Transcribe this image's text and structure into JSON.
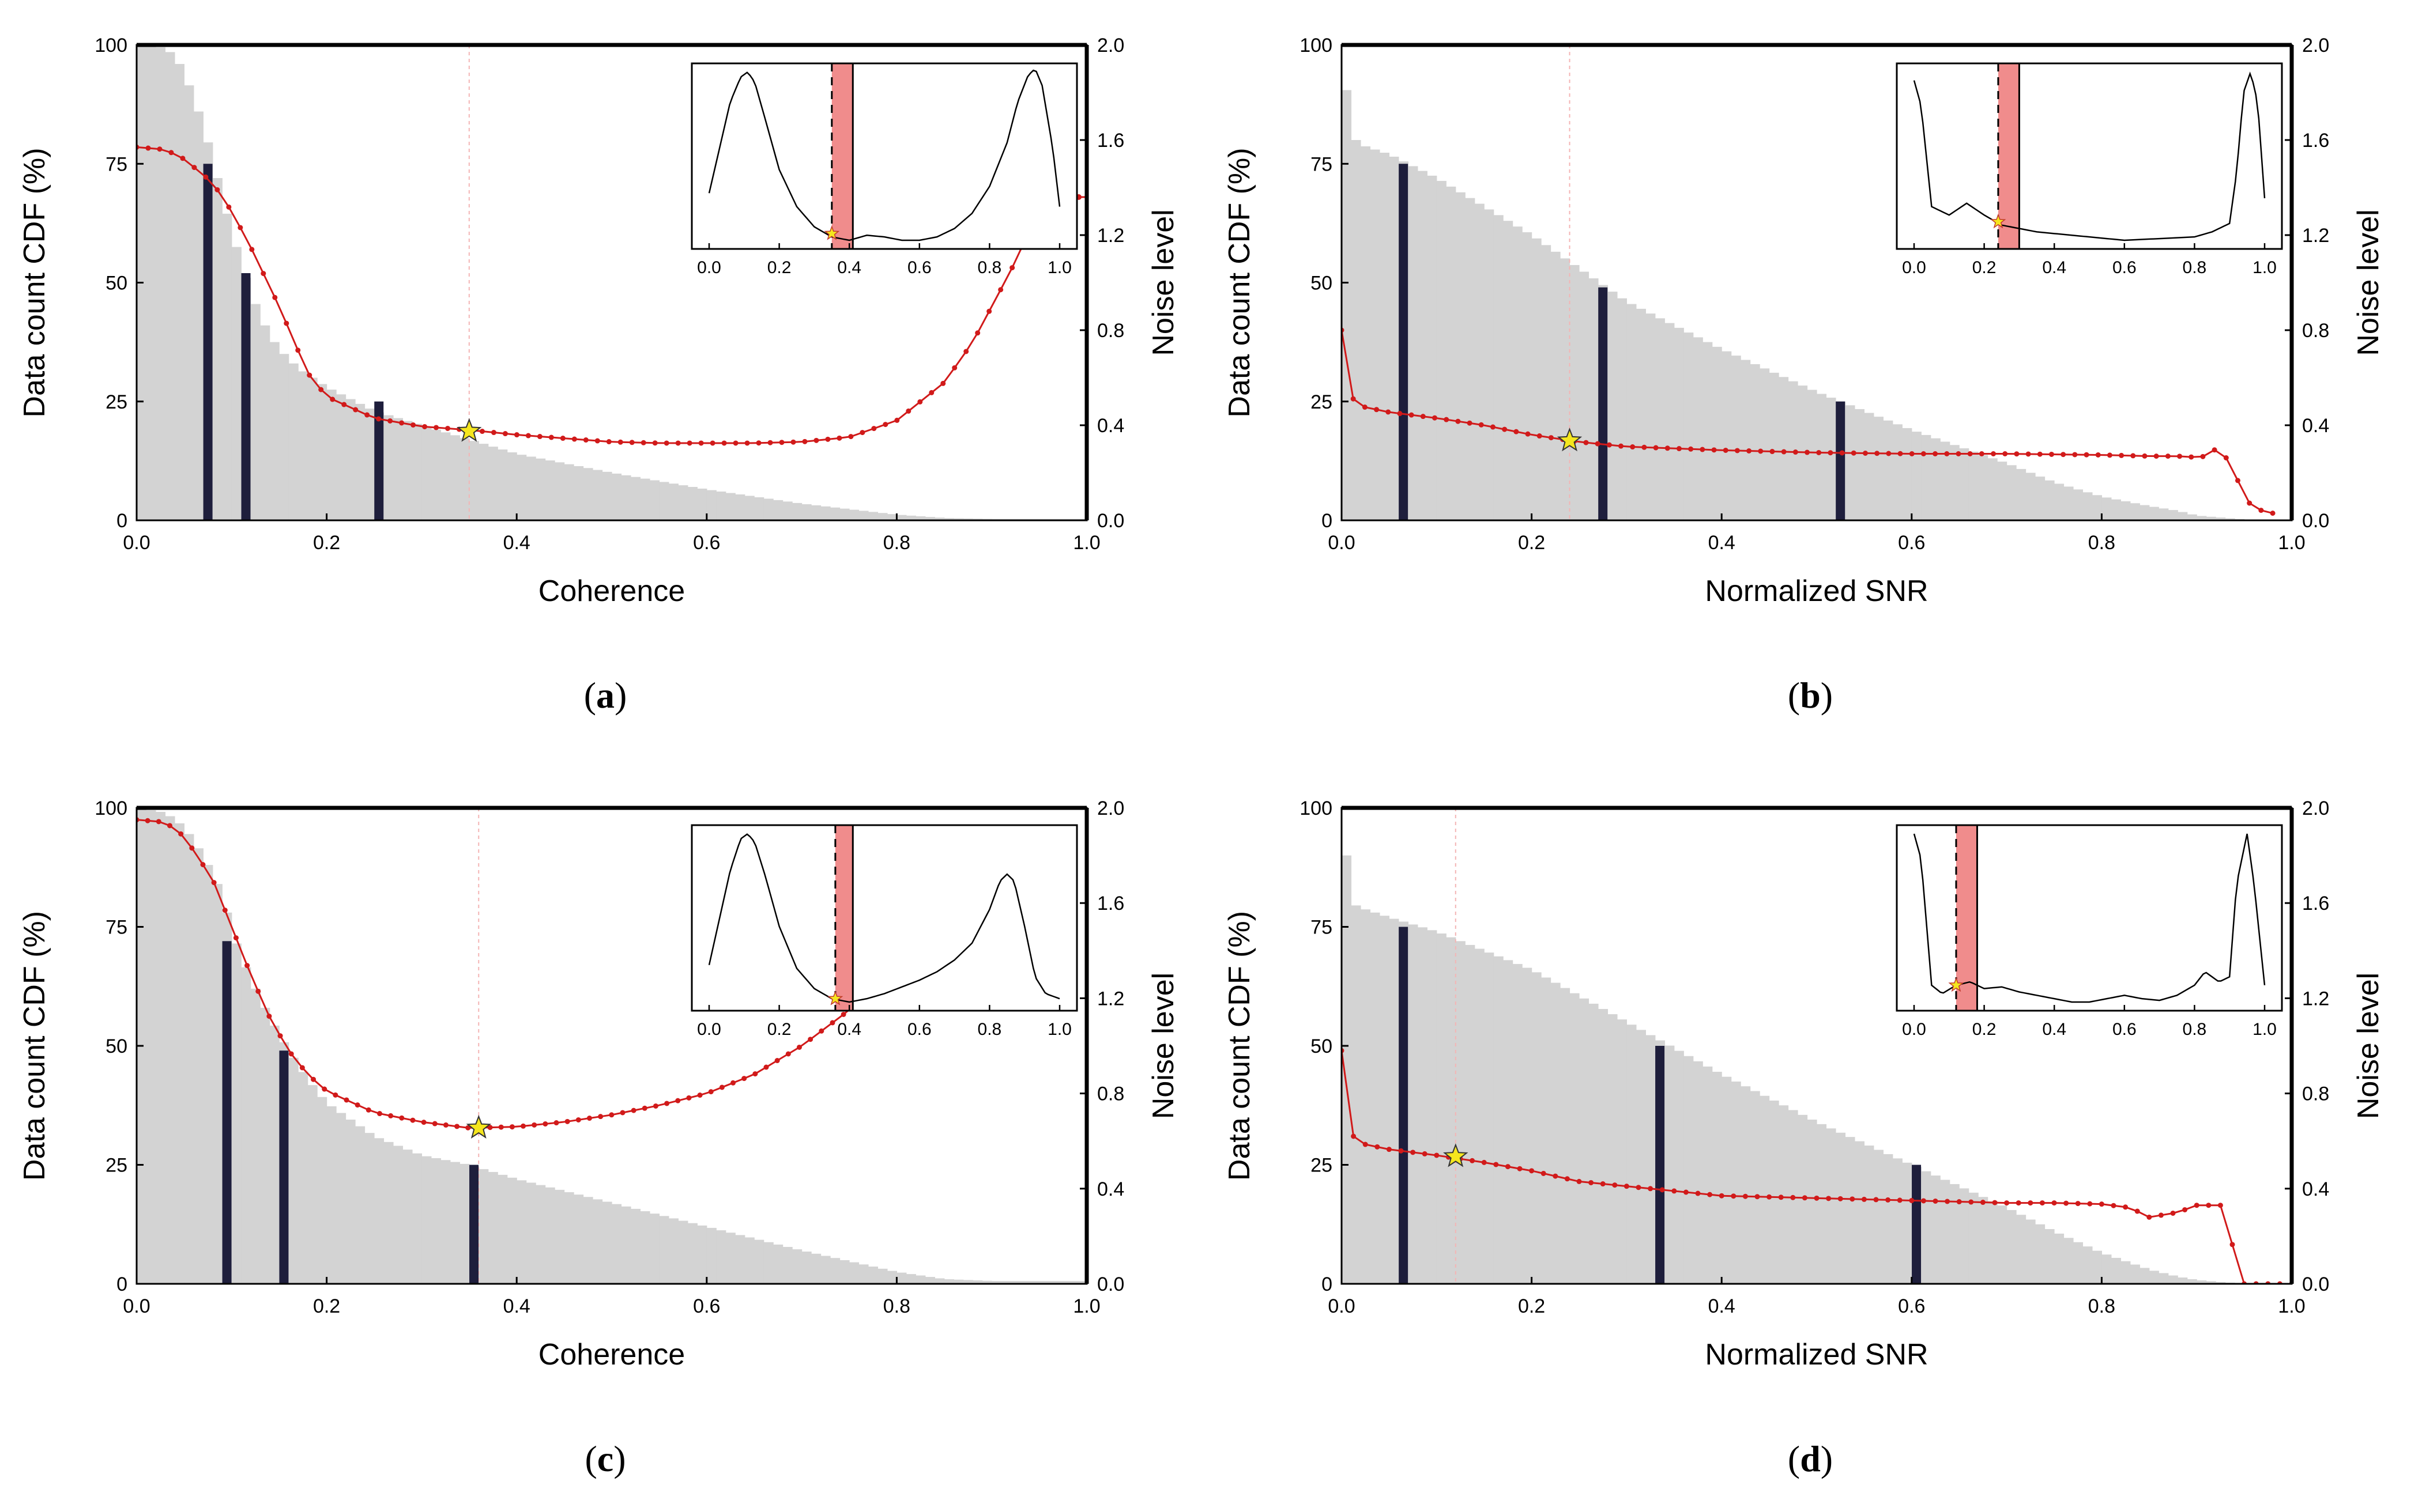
{
  "chart_data": [
    {
      "type": "bar",
      "panel_label": "a",
      "xlabel": "Coherence",
      "ylabel": "Data count CDF (%)",
      "y2label": "Noise level",
      "xlim": [
        0,
        1
      ],
      "ylim": [
        0,
        100
      ],
      "y2lim": [
        0,
        2
      ],
      "x_ticks": [
        "0.0",
        "0.2",
        "0.4",
        "0.6",
        "0.8",
        "1.0"
      ],
      "y_ticks": [
        "0",
        "25",
        "50",
        "75",
        "100"
      ],
      "y2_ticks": [
        "0.0",
        "0.4",
        "0.8",
        "1.2",
        "1.6",
        "2.0"
      ],
      "grid": false,
      "cdf": {
        "x": [
          0,
          0.02,
          0.04,
          0.05,
          0.06,
          0.07,
          0.08,
          0.09,
          0.1,
          0.11,
          0.12,
          0.13,
          0.14,
          0.15,
          0.17,
          0.2,
          0.25,
          0.3,
          0.35,
          0.4,
          0.5,
          0.6,
          0.7,
          0.8,
          0.85,
          0.9,
          1.0
        ],
        "y": [
          100,
          100,
          98,
          94,
          89,
          83,
          76,
          68,
          61,
          54,
          48,
          43,
          39,
          36,
          32,
          28,
          23,
          20,
          17,
          14,
          10,
          6.5,
          3.5,
          1.2,
          0.5,
          0.3,
          0.3
        ]
      },
      "quantile_bars": [
        {
          "x": 0.075,
          "value": 75
        },
        {
          "x": 0.115,
          "value": 52
        },
        {
          "x": 0.255,
          "value": 25
        }
      ],
      "noise_curve": {
        "x": [
          0,
          0.03,
          0.05,
          0.08,
          0.1,
          0.12,
          0.15,
          0.18,
          0.2,
          0.25,
          0.3,
          0.35,
          0.4,
          0.45,
          0.5,
          0.55,
          0.6,
          0.65,
          0.7,
          0.75,
          0.8,
          0.85,
          0.88,
          0.9,
          0.92,
          0.94,
          0.96,
          0.97
        ],
        "y": [
          1.57,
          1.56,
          1.52,
          1.42,
          1.3,
          1.15,
          0.9,
          0.62,
          0.52,
          0.43,
          0.395,
          0.38,
          0.36,
          0.345,
          0.33,
          0.325,
          0.325,
          0.325,
          0.33,
          0.35,
          0.42,
          0.58,
          0.75,
          0.9,
          1.05,
          1.22,
          1.38,
          1.48
        ]
      },
      "noise_right_marker": {
        "x": 1.0,
        "y": 1.36
      },
      "optimum": {
        "x": 0.35,
        "y": 0.375
      },
      "inset": {
        "xlim": [
          0,
          1
        ],
        "x_ticks": [
          "0.0",
          "0.2",
          "0.4",
          "0.6",
          "0.8",
          "1.0"
        ],
        "curve": {
          "x": [
            0,
            0.03,
            0.06,
            0.09,
            0.11,
            0.13,
            0.16,
            0.2,
            0.25,
            0.3,
            0.35,
            0.4,
            0.45,
            0.5,
            0.55,
            0.6,
            0.65,
            0.7,
            0.75,
            0.8,
            0.85,
            0.88,
            0.91,
            0.93,
            0.95,
            0.98,
            1.0
          ],
          "y": [
            0.28,
            0.55,
            0.82,
            0.97,
            1.0,
            0.94,
            0.72,
            0.42,
            0.2,
            0.08,
            0.02,
            0.0,
            0.03,
            0.02,
            0.0,
            0.0,
            0.02,
            0.07,
            0.16,
            0.32,
            0.58,
            0.82,
            0.98,
            1.02,
            0.92,
            0.55,
            0.2
          ]
        },
        "dashed_x": 0.35,
        "band": [
          0.35,
          0.41
        ],
        "band_line_x": 0.41,
        "star": {
          "x": 0.35,
          "y": 0.04
        }
      }
    },
    {
      "type": "bar",
      "panel_label": "b",
      "xlabel": "Normalized SNR",
      "ylabel": "Data count CDF (%)",
      "y2label": "Noise level",
      "xlim": [
        0,
        1
      ],
      "ylim": [
        0,
        100
      ],
      "y2lim": [
        0,
        2
      ],
      "x_ticks": [
        "0.0",
        "0.2",
        "0.4",
        "0.6",
        "0.8",
        "1.0"
      ],
      "y_ticks": [
        "0",
        "25",
        "50",
        "75",
        "100"
      ],
      "y2_ticks": [
        "0.0",
        "0.4",
        "0.8",
        "1.2",
        "1.6",
        "2.0"
      ],
      "grid": false,
      "cdf": {
        "x": [
          0,
          0.01,
          0.02,
          0.05,
          0.1,
          0.2,
          0.3,
          0.4,
          0.5,
          0.6,
          0.7,
          0.75,
          0.8,
          0.85,
          0.88,
          0.9,
          0.93,
          0.95,
          1.0
        ],
        "y": [
          100,
          81,
          79,
          77,
          72,
          60,
          46,
          36,
          27,
          19,
          12,
          8,
          5,
          3,
          2,
          1,
          0.5,
          0.2,
          0
        ]
      },
      "quantile_bars": [
        {
          "x": 0.065,
          "value": 75
        },
        {
          "x": 0.275,
          "value": 49
        },
        {
          "x": 0.525,
          "value": 25
        }
      ],
      "noise_curve": {
        "x": [
          0,
          0.005,
          0.01,
          0.02,
          0.05,
          0.1,
          0.15,
          0.2,
          0.25,
          0.3,
          0.4,
          0.5,
          0.6,
          0.7,
          0.8,
          0.85,
          0.88,
          0.9,
          0.91,
          0.92,
          0.93,
          0.94,
          0.95,
          0.96,
          0.98
        ],
        "y": [
          0.8,
          0.6,
          0.52,
          0.48,
          0.455,
          0.43,
          0.4,
          0.36,
          0.33,
          0.31,
          0.295,
          0.285,
          0.28,
          0.28,
          0.275,
          0.27,
          0.27,
          0.265,
          0.27,
          0.3,
          0.27,
          0.2,
          0.1,
          0.05,
          0.03
        ]
      },
      "optimum": {
        "x": 0.24,
        "y": 0.335
      },
      "inset": {
        "xlim": [
          0,
          1
        ],
        "x_ticks": [
          "0.0",
          "0.2",
          "0.4",
          "0.6",
          "0.8",
          "1.0"
        ],
        "curve": {
          "x": [
            0,
            0.02,
            0.05,
            0.1,
            0.15,
            0.2,
            0.25,
            0.3,
            0.35,
            0.4,
            0.5,
            0.6,
            0.7,
            0.8,
            0.85,
            0.9,
            0.92,
            0.94,
            0.96,
            0.98,
            1.0
          ],
          "y": [
            0.95,
            0.8,
            0.2,
            0.15,
            0.22,
            0.15,
            0.09,
            0.07,
            0.05,
            0.04,
            0.02,
            0.0,
            0.01,
            0.02,
            0.05,
            0.1,
            0.4,
            0.88,
            1.0,
            0.82,
            0.25
          ]
        },
        "dashed_x": 0.24,
        "band": [
          0.24,
          0.3
        ],
        "band_line_x": 0.3,
        "star": {
          "x": 0.24,
          "y": 0.11
        }
      }
    },
    {
      "type": "bar",
      "panel_label": "c",
      "xlabel": "Coherence",
      "ylabel": "Data count CDF (%)",
      "y2label": "Noise level",
      "xlim": [
        0,
        1
      ],
      "ylim": [
        0,
        100
      ],
      "y2lim": [
        0,
        2
      ],
      "x_ticks": [
        "0.0",
        "0.2",
        "0.4",
        "0.6",
        "0.8",
        "1.0"
      ],
      "y_ticks": [
        "0",
        "25",
        "50",
        "75",
        "100"
      ],
      "y2_ticks": [
        "0.0",
        "0.4",
        "0.8",
        "1.2",
        "1.6",
        "2.0"
      ],
      "grid": false,
      "cdf": {
        "x": [
          0,
          0.03,
          0.05,
          0.07,
          0.09,
          0.1,
          0.12,
          0.14,
          0.16,
          0.18,
          0.2,
          0.25,
          0.3,
          0.35,
          0.4,
          0.5,
          0.6,
          0.7,
          0.8,
          0.85,
          0.9,
          1.0
        ],
        "y": [
          100,
          99,
          96,
          90,
          82,
          74,
          64,
          56,
          49,
          43,
          38,
          31,
          27,
          25,
          22,
          17,
          12,
          7,
          2.5,
          1,
          0.6,
          0.6
        ]
      },
      "quantile_bars": [
        {
          "x": 0.095,
          "value": 72
        },
        {
          "x": 0.155,
          "value": 49
        },
        {
          "x": 0.355,
          "value": 25
        }
      ],
      "noise_curve": {
        "x": [
          0,
          0.03,
          0.05,
          0.08,
          0.1,
          0.12,
          0.14,
          0.16,
          0.18,
          0.2,
          0.25,
          0.3,
          0.35,
          0.4,
          0.45,
          0.5,
          0.55,
          0.6,
          0.65,
          0.7,
          0.75,
          0.78,
          0.8,
          0.85,
          0.9,
          0.93
        ],
        "y": [
          1.95,
          1.94,
          1.88,
          1.7,
          1.5,
          1.3,
          1.12,
          0.98,
          0.88,
          0.81,
          0.72,
          0.68,
          0.655,
          0.66,
          0.68,
          0.71,
          0.75,
          0.8,
          0.88,
          1.0,
          1.15,
          1.26,
          1.35,
          1.55,
          1.75,
          1.9
        ]
      },
      "optimum": {
        "x": 0.36,
        "y": 0.655
      },
      "inset": {
        "xlim": [
          0,
          1
        ],
        "x_ticks": [
          "0.0",
          "0.2",
          "0.4",
          "0.6",
          "0.8",
          "1.0"
        ],
        "curve": {
          "x": [
            0,
            0.03,
            0.06,
            0.09,
            0.11,
            0.13,
            0.16,
            0.2,
            0.25,
            0.3,
            0.35,
            0.4,
            0.45,
            0.5,
            0.55,
            0.6,
            0.65,
            0.7,
            0.75,
            0.8,
            0.83,
            0.85,
            0.87,
            0.9,
            0.93,
            0.96,
            1.0
          ],
          "y": [
            0.22,
            0.5,
            0.78,
            0.97,
            1.0,
            0.95,
            0.75,
            0.45,
            0.2,
            0.08,
            0.02,
            0.0,
            0.02,
            0.05,
            0.09,
            0.13,
            0.18,
            0.25,
            0.35,
            0.55,
            0.72,
            0.76,
            0.72,
            0.45,
            0.15,
            0.05,
            0.02
          ]
        },
        "dashed_x": 0.36,
        "band": [
          0.36,
          0.41
        ],
        "band_line_x": 0.41,
        "star": {
          "x": 0.36,
          "y": 0.02
        }
      }
    },
    {
      "type": "bar",
      "panel_label": "d",
      "xlabel": "Normalized SNR",
      "ylabel": "Data count CDF (%)",
      "y2label": "Noise level",
      "xlim": [
        0,
        1
      ],
      "ylim": [
        0,
        100
      ],
      "y2lim": [
        0,
        2
      ],
      "x_ticks": [
        "0.0",
        "0.2",
        "0.4",
        "0.6",
        "0.8",
        "1.0"
      ],
      "y_ticks": [
        "0",
        "25",
        "50",
        "75",
        "100"
      ],
      "y2_ticks": [
        "0.0",
        "0.4",
        "0.8",
        "1.2",
        "1.6",
        "2.0"
      ],
      "grid": false,
      "cdf": {
        "x": [
          0,
          0.01,
          0.02,
          0.05,
          0.1,
          0.2,
          0.3,
          0.4,
          0.5,
          0.6,
          0.7,
          0.75,
          0.8,
          0.85,
          0.88,
          0.9,
          0.93,
          0.95,
          1.0
        ],
        "y": [
          100,
          80,
          79,
          77,
          74,
          66,
          55,
          44,
          34,
          25,
          16,
          11,
          6.5,
          3,
          1.5,
          0.8,
          0.3,
          0.1,
          0
        ]
      },
      "quantile_bars": [
        {
          "x": 0.065,
          "value": 75
        },
        {
          "x": 0.335,
          "value": 50
        },
        {
          "x": 0.605,
          "value": 25
        }
      ],
      "noise_curve": {
        "x": [
          0,
          0.005,
          0.01,
          0.02,
          0.05,
          0.1,
          0.15,
          0.2,
          0.25,
          0.3,
          0.4,
          0.5,
          0.6,
          0.7,
          0.75,
          0.8,
          0.83,
          0.85,
          0.88,
          0.9,
          0.91,
          0.92,
          0.93,
          0.94,
          0.95,
          1.0
        ],
        "y": [
          0.98,
          0.75,
          0.63,
          0.59,
          0.565,
          0.54,
          0.51,
          0.475,
          0.43,
          0.41,
          0.37,
          0.36,
          0.35,
          0.34,
          0.34,
          0.335,
          0.32,
          0.28,
          0.3,
          0.33,
          0.32,
          0.36,
          0.3,
          0.12,
          0.0,
          0.0
        ]
      },
      "optimum": {
        "x": 0.12,
        "y": 0.535
      },
      "inset": {
        "xlim": [
          0,
          1
        ],
        "x_ticks": [
          "0.0",
          "0.2",
          "0.4",
          "0.6",
          "0.8",
          "1.0"
        ],
        "curve": {
          "x": [
            0,
            0.02,
            0.05,
            0.08,
            0.12,
            0.16,
            0.2,
            0.25,
            0.3,
            0.35,
            0.4,
            0.45,
            0.5,
            0.55,
            0.6,
            0.65,
            0.7,
            0.75,
            0.8,
            0.83,
            0.87,
            0.9,
            0.92,
            0.95,
            0.97,
            1.0
          ],
          "y": [
            1.0,
            0.85,
            0.1,
            0.05,
            0.1,
            0.12,
            0.08,
            0.09,
            0.06,
            0.04,
            0.02,
            0.0,
            0.0,
            0.02,
            0.04,
            0.02,
            0.01,
            0.04,
            0.1,
            0.18,
            0.12,
            0.15,
            0.7,
            1.0,
            0.7,
            0.1
          ]
        },
        "dashed_x": 0.12,
        "band": [
          0.12,
          0.18
        ],
        "band_line_x": 0.18,
        "star": {
          "x": 0.12,
          "y": 0.1
        }
      }
    }
  ],
  "colors": {
    "cdf_fill": "#d3d3d3",
    "quantile_bar": "#1e1e3c",
    "noise_curve": "#d11a1a",
    "star_fill": "#f5e61e",
    "band_fill": "#f08c8c",
    "guide_line": "#f4b4b4"
  }
}
